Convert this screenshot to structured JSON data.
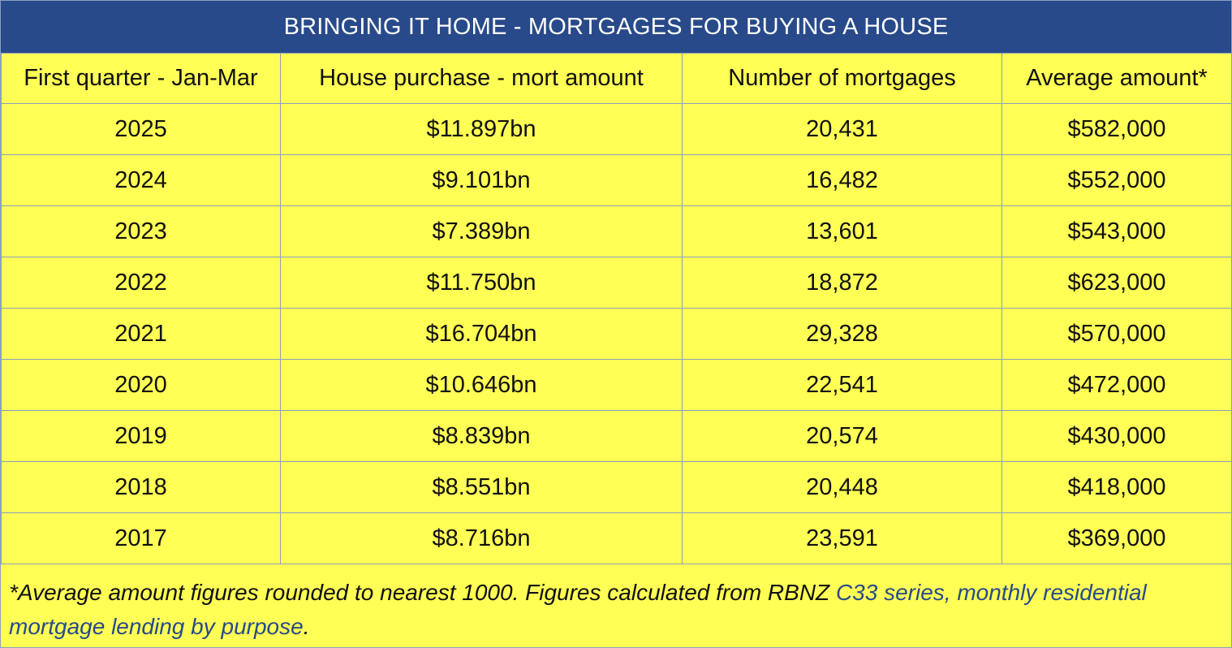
{
  "title": "BRINGING IT HOME - MORTGAGES FOR BUYING A HOUSE",
  "columns": [
    "First quarter - Jan-Mar",
    "House purchase - mort amount",
    "Number of mortgages",
    "Average amount*"
  ],
  "rows": [
    [
      "2025",
      "$11.897bn",
      "20,431",
      "$582,000"
    ],
    [
      "2024",
      "$9.101bn",
      "16,482",
      "$552,000"
    ],
    [
      "2023",
      "$7.389bn",
      "13,601",
      "$543,000"
    ],
    [
      "2022",
      "$11.750bn",
      "18,872",
      "$623,000"
    ],
    [
      "2021",
      "$16.704bn",
      "29,328",
      "$570,000"
    ],
    [
      "2020",
      "$10.646bn",
      "22,541",
      "$472,000"
    ],
    [
      "2019",
      "$8.839bn",
      "20,574",
      "$430,000"
    ],
    [
      "2018",
      "$8.551bn",
      "20,448",
      "$418,000"
    ],
    [
      "2017",
      "$8.716bn",
      "23,591",
      "$369,000"
    ]
  ],
  "footnote": {
    "text": "*Average amount figures rounded to nearest 1000. Figures calculated from RBNZ ",
    "link": "C33 series, monthly residential mortgage lending by purpose",
    "end": "."
  },
  "colors": {
    "header_bg": "#284a8a",
    "table_bg": "#ffff55",
    "border": "#8aa0bf",
    "link": "#284a8a"
  }
}
